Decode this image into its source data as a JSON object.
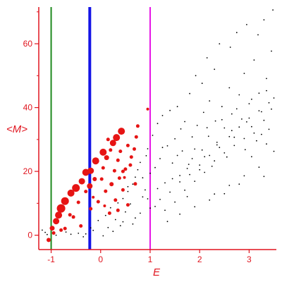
{
  "chart_data": {
    "type": "scatter",
    "title": "",
    "xlabel": "E",
    "ylabel": "<M>",
    "xlim": [
      -1.25,
      3.55
    ],
    "ylim": [
      -4.5,
      71.5
    ],
    "grid": false,
    "x_ticks": [
      {
        "value": -1,
        "label": "-1"
      },
      {
        "value": 0,
        "label": "0"
      },
      {
        "value": 1,
        "label": "1"
      },
      {
        "value": 2,
        "label": "2"
      },
      {
        "value": 3,
        "label": "3"
      }
    ],
    "y_ticks": [
      {
        "value": 0,
        "label": "0"
      },
      {
        "value": 20,
        "label": "20"
      },
      {
        "value": 40,
        "label": "40"
      },
      {
        "value": 60,
        "label": "60"
      }
    ],
    "vertical_lines": [
      {
        "x": -1.0,
        "color": "#1e8a1e"
      },
      {
        "x": -0.22,
        "color": "#1414e6"
      },
      {
        "x": 1.0,
        "color": "#e614e6"
      }
    ],
    "series": [
      {
        "color": "#e61414",
        "points": [
          [
            -0.98,
            2.2,
            3.5
          ],
          [
            -0.9,
            4.4,
            4.5
          ],
          [
            -0.85,
            6.3,
            5
          ],
          [
            -0.8,
            8.4,
            6
          ],
          [
            -0.72,
            10.7,
            5.5
          ],
          [
            -0.6,
            13.2,
            5
          ],
          [
            -0.5,
            14.8,
            5.5
          ],
          [
            -0.38,
            16.9,
            4.5
          ],
          [
            -0.3,
            19.7,
            5
          ],
          [
            -0.2,
            20.2,
            4.5
          ],
          [
            -0.1,
            23.3,
            5
          ],
          [
            0.05,
            26.0,
            5
          ],
          [
            0.12,
            24.3,
            3.5
          ],
          [
            0.25,
            28.9,
            4.5
          ],
          [
            0.32,
            30.6,
            5
          ],
          [
            0.42,
            32.6,
            5
          ],
          [
            -0.22,
            15.4,
            4
          ],
          [
            -0.12,
            17.6,
            3
          ],
          [
            0.1,
            13.8,
            2.5
          ],
          [
            0.22,
            16.0,
            3
          ],
          [
            0.38,
            17.9,
            2.5
          ],
          [
            0.5,
            20.7,
            2.5
          ],
          [
            0.62,
            24.5,
            2.5
          ],
          [
            0.55,
            28.1,
            2.5
          ],
          [
            0.05,
            21.1,
            2.5
          ],
          [
            0.28,
            20.2,
            2.5
          ],
          [
            0.35,
            23.5,
            2.5
          ],
          [
            0.15,
            30.0,
            2.5
          ],
          [
            -0.45,
            10.3,
            2.5
          ],
          [
            -0.55,
            5.7,
            2.5
          ],
          [
            -0.2,
            8.3,
            2.5
          ],
          [
            0.3,
            11.0,
            2.5
          ],
          [
            0.45,
            14.2,
            2.5
          ],
          [
            -0.72,
            2.1,
            2.5
          ],
          [
            -0.4,
            2.9,
            2.5
          ],
          [
            -0.05,
            10.5,
            2.5
          ],
          [
            0.18,
            6.9,
            2.5
          ],
          [
            0.35,
            7.8,
            2.5
          ],
          [
            -0.62,
            6.4,
            2.5
          ],
          [
            -0.8,
            1.6,
            2.5
          ],
          [
            -0.3,
            13.7,
            2.5
          ],
          [
            0.02,
            17.6,
            2.5
          ],
          [
            0.45,
            20.0,
            2.5
          ],
          [
            0.68,
            27.0,
            2.5
          ],
          [
            0.72,
            30.8,
            2.5
          ],
          [
            0.2,
            26.7,
            2.5
          ],
          [
            -0.95,
            0.7,
            2.5
          ],
          [
            -1.05,
            -1.5,
            3
          ],
          [
            0.55,
            9.5,
            2.5
          ],
          [
            0.7,
            16.1,
            2.5
          ],
          [
            0.95,
            39.5,
            2
          ],
          [
            0.75,
            34.2,
            2.5
          ],
          [
            0.6,
            22.0,
            2.5
          ],
          [
            0.48,
            18.1,
            2
          ],
          [
            -0.15,
            11.9,
            2
          ],
          [
            0.4,
            26.3,
            2.5
          ],
          [
            0.08,
            9.2,
            2
          ]
        ]
      },
      {
        "color": "#000000",
        "points": [
          [
            -1.18,
            1.6
          ],
          [
            -1.12,
            0.9
          ],
          [
            -1.08,
            0.2
          ],
          [
            -0.9,
            0.0
          ],
          [
            -0.7,
            1.0
          ],
          [
            -0.45,
            0.6
          ],
          [
            -0.3,
            0.4
          ],
          [
            -0.2,
            2.3
          ],
          [
            -0.05,
            4.6
          ],
          [
            0.1,
            6.2
          ],
          [
            0.2,
            8.6
          ],
          [
            0.35,
            10.1
          ],
          [
            0.45,
            11.5
          ],
          [
            0.55,
            13.7
          ],
          [
            0.65,
            16.0
          ],
          [
            0.7,
            18.2
          ],
          [
            0.75,
            20.5
          ],
          [
            0.8,
            22.8
          ],
          [
            0.85,
            12.0
          ],
          [
            0.9,
            14.2
          ],
          [
            0.92,
            24.9
          ],
          [
            0.95,
            27.1
          ],
          [
            1.0,
            19.4
          ],
          [
            1.05,
            31.3
          ],
          [
            1.1,
            21.2
          ],
          [
            1.15,
            35.0
          ],
          [
            1.2,
            24.0
          ],
          [
            1.25,
            37.5
          ],
          [
            1.3,
            16.4
          ],
          [
            1.35,
            28.0
          ],
          [
            1.4,
            39.1
          ],
          [
            1.45,
            22.6
          ],
          [
            1.5,
            30.2
          ],
          [
            1.55,
            40.3
          ],
          [
            1.6,
            18.7
          ],
          [
            1.62,
            33.3
          ],
          [
            1.65,
            26.4
          ],
          [
            1.7,
            35.6
          ],
          [
            1.75,
            12.1
          ],
          [
            1.78,
            22.2
          ],
          [
            1.8,
            44.4
          ],
          [
            1.85,
            30.8
          ],
          [
            1.9,
            27.0
          ],
          [
            1.92,
            50.0
          ],
          [
            1.95,
            34.4
          ],
          [
            2.0,
            20.5
          ],
          [
            2.05,
            47.6
          ],
          [
            2.08,
            38.5
          ],
          [
            2.1,
            24.6
          ],
          [
            2.15,
            55.6
          ],
          [
            2.18,
            31.0
          ],
          [
            2.2,
            42.1
          ],
          [
            2.25,
            21.6
          ],
          [
            2.3,
            52.0
          ],
          [
            2.32,
            35.8
          ],
          [
            2.35,
            28.3
          ],
          [
            2.4,
            60.0
          ],
          [
            2.45,
            40.3
          ],
          [
            2.5,
            33.6
          ],
          [
            2.55,
            24.5
          ],
          [
            2.6,
            46.2
          ],
          [
            2.62,
            58.9
          ],
          [
            2.65,
            38.0
          ],
          [
            2.7,
            30.7
          ],
          [
            2.75,
            63.5
          ],
          [
            2.8,
            44.0
          ],
          [
            2.85,
            36.4
          ],
          [
            2.9,
            50.7
          ],
          [
            2.92,
            26.8
          ],
          [
            2.95,
            66.0
          ],
          [
            3.0,
            41.2
          ],
          [
            3.05,
            34.0
          ],
          [
            3.1,
            54.9
          ],
          [
            3.15,
            29.6
          ],
          [
            3.18,
            62.8
          ],
          [
            3.2,
            44.5
          ],
          [
            3.25,
            38.7
          ],
          [
            3.3,
            67.5
          ],
          [
            3.35,
            49.1
          ],
          [
            3.4,
            33.2
          ],
          [
            3.45,
            57.7
          ],
          [
            3.48,
            70.6
          ],
          [
            3.5,
            43.0
          ],
          [
            3.5,
            26.3
          ],
          [
            0.15,
            2.4
          ],
          [
            0.3,
            4.9
          ],
          [
            0.5,
            7.3
          ],
          [
            0.6,
            9.8
          ],
          [
            0.8,
            6.9
          ],
          [
            0.95,
            11.4
          ],
          [
            1.1,
            9.0
          ],
          [
            1.3,
            7.8
          ],
          [
            1.5,
            10.4
          ],
          [
            1.7,
            14.1
          ],
          [
            1.9,
            16.9
          ],
          [
            2.1,
            19.7
          ],
          [
            2.3,
            23.3
          ],
          [
            2.5,
            25.8
          ],
          [
            2.7,
            28.1
          ],
          [
            2.9,
            30.3
          ],
          [
            3.1,
            32.0
          ],
          [
            3.3,
            36.0
          ],
          [
            3.45,
            39.5
          ],
          [
            0.05,
            -0.2
          ],
          [
            0.4,
            3.0
          ],
          [
            0.7,
            5.4
          ],
          [
            1.0,
            8.5
          ],
          [
            1.2,
            11.2
          ],
          [
            1.4,
            13.5
          ],
          [
            1.6,
            16.7
          ],
          [
            1.8,
            19.0
          ],
          [
            2.0,
            22.0
          ],
          [
            2.2,
            25.0
          ],
          [
            2.4,
            27.5
          ],
          [
            2.6,
            30.9
          ],
          [
            2.8,
            33.9
          ],
          [
            3.0,
            36.7
          ],
          [
            3.2,
            39.0
          ],
          [
            3.4,
            41.5
          ],
          [
            2.3,
            12.9
          ],
          [
            2.6,
            15.6
          ],
          [
            2.9,
            18.6
          ],
          [
            3.2,
            21.3
          ],
          [
            3.3,
            18.4
          ],
          [
            1.35,
            4.3
          ],
          [
            1.6,
            6.6
          ],
          [
            1.9,
            8.9
          ],
          [
            2.2,
            11.0
          ],
          [
            2.5,
            13.0
          ],
          [
            2.8,
            16.0
          ],
          [
            3.05,
            24.6
          ],
          [
            3.35,
            28.6
          ],
          [
            1.15,
            14.6
          ],
          [
            1.45,
            17.7
          ],
          [
            1.75,
            20.9
          ],
          [
            2.05,
            26.7
          ],
          [
            2.35,
            29.1
          ],
          [
            2.65,
            32.8
          ],
          [
            2.95,
            35.5
          ],
          [
            3.25,
            31.6
          ],
          [
            0.55,
            15.2
          ],
          [
            0.85,
            18.0
          ],
          [
            1.25,
            27.5
          ],
          [
            1.55,
            25.0
          ],
          [
            1.85,
            24.0
          ],
          [
            2.15,
            33.7
          ],
          [
            2.45,
            36.2
          ],
          [
            2.75,
            39.6
          ],
          [
            3.05,
            42.6
          ],
          [
            3.35,
            45.3
          ],
          [
            -0.6,
            0.3
          ],
          [
            -0.35,
            -0.5
          ],
          [
            -0.15,
            1.5
          ],
          [
            0.25,
            1.2
          ],
          [
            0.45,
            4.2
          ],
          [
            0.65,
            3.5
          ]
        ]
      }
    ]
  }
}
